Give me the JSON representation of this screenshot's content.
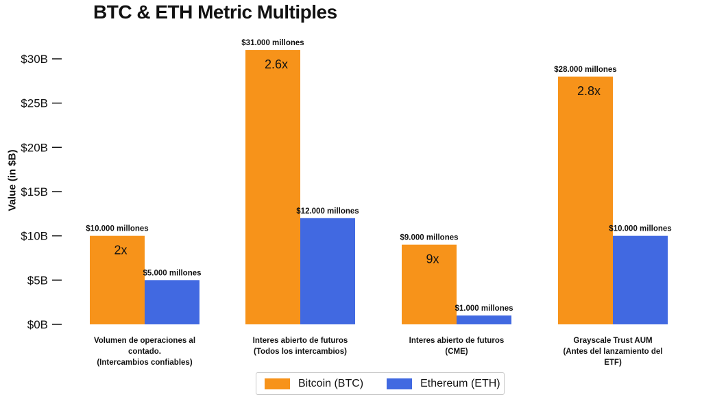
{
  "chart_data": {
    "type": "bar",
    "title": "BTC & ETH Metric Multiples",
    "ylabel": "Value (in $B)",
    "ylim": [
      0,
      30
    ],
    "yticks": [
      "$0B",
      "$5B",
      "$10B",
      "$15B",
      "$20B",
      "$25B",
      "$30B"
    ],
    "ytick_values": [
      0,
      5,
      10,
      15,
      20,
      25,
      30
    ],
    "categories": [
      [
        "Volumen de operaciones al",
        "contado.",
        "(Intercambios  confiables)"
      ],
      [
        "Interes abierto de futuros",
        "(Todos los intercambios)"
      ],
      [
        "Interes abierto de futuros",
        "(CME)"
      ],
      [
        "Grayscale Trust AUM",
        "(Antes del lanzamiento del",
        "ETF)"
      ]
    ],
    "series": [
      {
        "name": "Bitcoin (BTC)",
        "color": "#F7931A",
        "values": [
          10,
          31,
          9,
          28
        ],
        "value_labels": [
          "$10.000 millones",
          "$31.000 millones",
          "$9.000 millones",
          "$28.000 millones"
        ],
        "multiple_labels": [
          "2x",
          "2.6x",
          "9x",
          "2.8x"
        ]
      },
      {
        "name": "Ethereum (ETH)",
        "color": "#4169E1",
        "values": [
          5,
          12,
          1,
          10
        ],
        "value_labels": [
          "$5.000 millones",
          "$12.000 millones",
          "$1.000 millones",
          "$10.000 millones"
        ]
      }
    ],
    "grid": false,
    "legend_position": "bottom-center"
  }
}
